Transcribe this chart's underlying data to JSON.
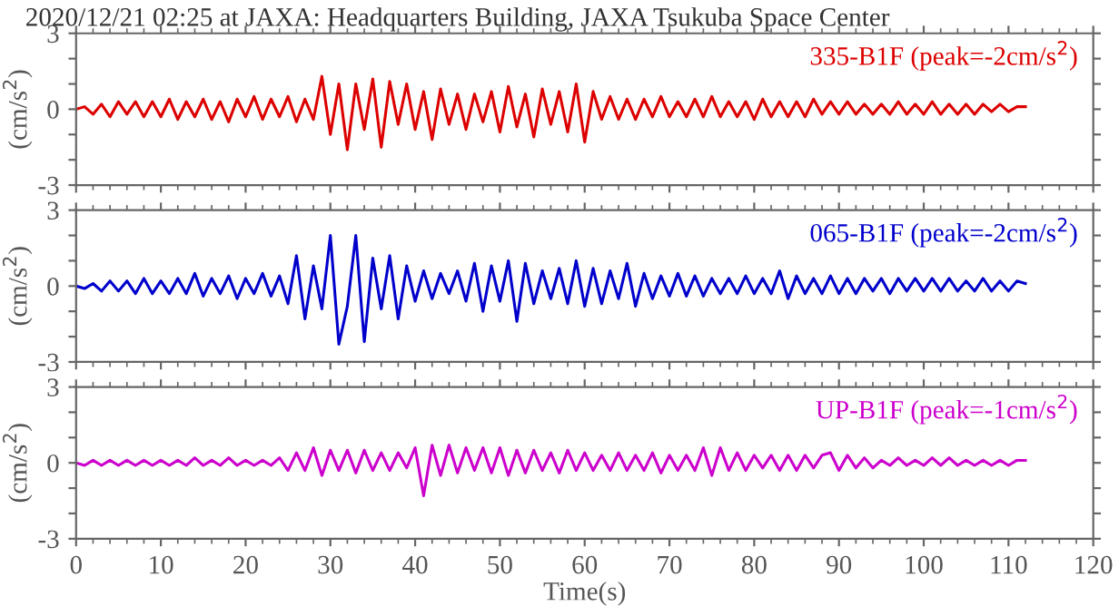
{
  "chart_data": [
    {
      "type": "line",
      "title": "2020/12/21 02:25 at JAXA: Headquarters Building, JAXA Tsukuba Space Center",
      "ylabel": "(cm/s$^{2}$)",
      "xlim": [
        0,
        120
      ],
      "ylim": [
        -3,
        3
      ],
      "yticks": [
        -3,
        {
          "value": -2,
          "label": null
        },
        {
          "value": -1,
          "label": null
        },
        0,
        {
          "value": 1,
          "label": null
        },
        {
          "value": 2,
          "label": null
        },
        3
      ],
      "xticks": [
        0,
        10,
        20,
        30,
        40,
        50,
        60,
        70,
        80,
        90,
        100,
        110,
        120
      ],
      "tick_labels": "y",
      "grid": false,
      "legend": false,
      "x": [
        0,
        1,
        2,
        3,
        4,
        5,
        6,
        7,
        8,
        9,
        10,
        11,
        12,
        13,
        14,
        15,
        16,
        17,
        18,
        19,
        20,
        21,
        22,
        23,
        24,
        25,
        26,
        27,
        28,
        29,
        30,
        31,
        32,
        33,
        34,
        35,
        36,
        37,
        38,
        39,
        40,
        41,
        42,
        43,
        44,
        45,
        46,
        47,
        48,
        49,
        50,
        51,
        52,
        53,
        54,
        55,
        56,
        57,
        58,
        59,
        60,
        61,
        62,
        63,
        64,
        65,
        66,
        67,
        68,
        69,
        70,
        71,
        72,
        73,
        74,
        75,
        76,
        77,
        78,
        79,
        80,
        81,
        82,
        83,
        84,
        85,
        86,
        87,
        88,
        89,
        90,
        91,
        92,
        93,
        94,
        95,
        96,
        97,
        98,
        99,
        100,
        101,
        102,
        103,
        104,
        105,
        106,
        107,
        108,
        109,
        110,
        111,
        112
      ],
      "series": [
        {
          "name": "335-B1F (peak=-2cm/s$^{2}$)",
          "color": "#dd0000",
          "values": [
            0,
            0.1,
            -0.2,
            0.2,
            -0.3,
            0.3,
            -0.2,
            0.3,
            -0.3,
            0.3,
            -0.3,
            0.4,
            -0.4,
            0.3,
            -0.3,
            0.4,
            -0.4,
            0.3,
            -0.5,
            0.4,
            -0.3,
            0.5,
            -0.4,
            0.4,
            -0.3,
            0.5,
            -0.5,
            0.4,
            -0.4,
            1.3,
            -1.0,
            1.0,
            -1.6,
            1.0,
            -0.8,
            1.2,
            -1.5,
            1.1,
            -0.6,
            1.0,
            -0.8,
            0.7,
            -1.2,
            0.8,
            -0.6,
            0.6,
            -0.8,
            0.6,
            -0.5,
            0.7,
            -0.9,
            0.9,
            -0.7,
            0.6,
            -1.1,
            0.8,
            -0.6,
            0.7,
            -0.9,
            1.0,
            -1.3,
            0.7,
            -0.4,
            0.5,
            -0.4,
            0.4,
            -0.4,
            0.4,
            -0.3,
            0.5,
            -0.3,
            0.3,
            -0.3,
            0.4,
            -0.3,
            0.5,
            -0.3,
            0.3,
            -0.3,
            0.3,
            -0.4,
            0.4,
            -0.3,
            0.3,
            -0.3,
            0.3,
            -0.3,
            0.4,
            -0.2,
            0.3,
            -0.2,
            0.3,
            -0.2,
            0.2,
            -0.2,
            0.2,
            -0.2,
            0.3,
            -0.2,
            0.2,
            -0.2,
            0.3,
            -0.2,
            0.2,
            -0.2,
            0.2,
            -0.2,
            0.2,
            -0.1,
            0.2,
            -0.1,
            0.1,
            0.1
          ]
        }
      ]
    },
    {
      "type": "line",
      "ylabel": "(cm/s$^{2}$)",
      "xlim": [
        0,
        120
      ],
      "ylim": [
        -3,
        3
      ],
      "yticks": [
        -3,
        {
          "value": -2,
          "label": null
        },
        {
          "value": -1,
          "label": null
        },
        0,
        {
          "value": 1,
          "label": null
        },
        {
          "value": 2,
          "label": null
        },
        3
      ],
      "xticks": [
        0,
        10,
        20,
        30,
        40,
        50,
        60,
        70,
        80,
        90,
        100,
        110,
        120
      ],
      "tick_labels": "y",
      "grid": false,
      "legend": false,
      "x": [
        0,
        1,
        2,
        3,
        4,
        5,
        6,
        7,
        8,
        9,
        10,
        11,
        12,
        13,
        14,
        15,
        16,
        17,
        18,
        19,
        20,
        21,
        22,
        23,
        24,
        25,
        26,
        27,
        28,
        29,
        30,
        31,
        32,
        33,
        34,
        35,
        36,
        37,
        38,
        39,
        40,
        41,
        42,
        43,
        44,
        45,
        46,
        47,
        48,
        49,
        50,
        51,
        52,
        53,
        54,
        55,
        56,
        57,
        58,
        59,
        60,
        61,
        62,
        63,
        64,
        65,
        66,
        67,
        68,
        69,
        70,
        71,
        72,
        73,
        74,
        75,
        76,
        77,
        78,
        79,
        80,
        81,
        82,
        83,
        84,
        85,
        86,
        87,
        88,
        89,
        90,
        91,
        92,
        93,
        94,
        95,
        96,
        97,
        98,
        99,
        100,
        101,
        102,
        103,
        104,
        105,
        106,
        107,
        108,
        109,
        110,
        111,
        112
      ],
      "series": [
        {
          "name": "065-B1F (peak=-2cm/s$^{2}$)",
          "color": "#0000cc",
          "values": [
            0,
            -0.1,
            0.1,
            -0.2,
            0.2,
            -0.2,
            0.2,
            -0.3,
            0.3,
            -0.3,
            0.2,
            -0.3,
            0.3,
            -0.3,
            0.5,
            -0.4,
            0.3,
            -0.3,
            0.4,
            -0.5,
            0.3,
            -0.3,
            0.5,
            -0.4,
            0.4,
            -0.7,
            1.2,
            -1.3,
            0.8,
            -0.9,
            2.0,
            -2.3,
            -0.8,
            2.0,
            -2.2,
            1.1,
            -0.9,
            1.2,
            -1.3,
            0.8,
            -0.6,
            0.6,
            -0.5,
            0.5,
            -0.3,
            0.6,
            -0.6,
            0.9,
            -1.0,
            0.8,
            -0.6,
            1.0,
            -1.4,
            0.9,
            -0.7,
            0.6,
            -0.5,
            0.7,
            -0.7,
            1.0,
            -0.8,
            0.7,
            -0.7,
            0.6,
            -0.5,
            0.9,
            -0.8,
            0.5,
            -0.5,
            0.4,
            -0.4,
            0.5,
            -0.4,
            0.4,
            -0.4,
            0.3,
            -0.3,
            0.3,
            -0.3,
            0.4,
            -0.3,
            0.3,
            -0.3,
            0.6,
            -0.5,
            0.4,
            -0.3,
            0.3,
            -0.3,
            0.4,
            -0.3,
            0.3,
            -0.3,
            0.3,
            -0.2,
            0.3,
            -0.3,
            0.3,
            -0.2,
            0.3,
            -0.2,
            0.3,
            -0.2,
            0.3,
            -0.2,
            0.2,
            -0.2,
            0.3,
            -0.2,
            0.2,
            -0.2,
            0.2,
            0.1
          ]
        }
      ]
    },
    {
      "type": "line",
      "ylabel": "(cm/s$^{2}$)",
      "xlabel": "Time(s)",
      "xlim": [
        0,
        120
      ],
      "ylim": [
        -3,
        3
      ],
      "yticks": [
        -3,
        {
          "value": -2,
          "label": null
        },
        {
          "value": -1,
          "label": null
        },
        0,
        {
          "value": 1,
          "label": null
        },
        {
          "value": 2,
          "label": null
        },
        3
      ],
      "xticks": [
        0,
        10,
        20,
        30,
        40,
        50,
        60,
        70,
        80,
        90,
        100,
        110,
        120
      ],
      "grid": false,
      "legend": false,
      "x": [
        0,
        1,
        2,
        3,
        4,
        5,
        6,
        7,
        8,
        9,
        10,
        11,
        12,
        13,
        14,
        15,
        16,
        17,
        18,
        19,
        20,
        21,
        22,
        23,
        24,
        25,
        26,
        27,
        28,
        29,
        30,
        31,
        32,
        33,
        34,
        35,
        36,
        37,
        38,
        39,
        40,
        41,
        42,
        43,
        44,
        45,
        46,
        47,
        48,
        49,
        50,
        51,
        52,
        53,
        54,
        55,
        56,
        57,
        58,
        59,
        60,
        61,
        62,
        63,
        64,
        65,
        66,
        67,
        68,
        69,
        70,
        71,
        72,
        73,
        74,
        75,
        76,
        77,
        78,
        79,
        80,
        81,
        82,
        83,
        84,
        85,
        86,
        87,
        88,
        89,
        90,
        91,
        92,
        93,
        94,
        95,
        96,
        97,
        98,
        99,
        100,
        101,
        102,
        103,
        104,
        105,
        106,
        107,
        108,
        109,
        110,
        111,
        112
      ],
      "series": [
        {
          "name": "UP-B1F (peak=-1cm/s$^{2}$)",
          "color": "#cc00cc",
          "values": [
            0,
            -0.1,
            0.1,
            -0.1,
            0.1,
            -0.1,
            0.1,
            -0.1,
            0.1,
            -0.1,
            0.1,
            -0.1,
            0.1,
            -0.1,
            0.2,
            -0.1,
            0.1,
            -0.1,
            0.2,
            -0.1,
            0.1,
            -0.1,
            0.1,
            -0.1,
            0.2,
            -0.3,
            0.4,
            -0.3,
            0.6,
            -0.5,
            0.5,
            -0.3,
            0.5,
            -0.4,
            0.5,
            -0.3,
            0.4,
            -0.3,
            0.4,
            -0.2,
            0.6,
            -1.3,
            0.7,
            -0.5,
            0.7,
            -0.4,
            0.6,
            -0.3,
            0.6,
            -0.4,
            0.6,
            -0.5,
            0.5,
            -0.4,
            0.5,
            -0.3,
            0.4,
            -0.4,
            0.5,
            -0.3,
            0.4,
            -0.3,
            0.3,
            -0.3,
            0.4,
            -0.3,
            0.3,
            -0.3,
            0.4,
            -0.4,
            0.3,
            -0.3,
            0.3,
            -0.3,
            0.6,
            -0.5,
            0.6,
            -0.3,
            0.4,
            -0.3,
            0.3,
            -0.2,
            0.3,
            -0.3,
            0.3,
            -0.3,
            0.3,
            -0.2,
            0.3,
            0.4,
            -0.3,
            0.3,
            -0.2,
            0.2,
            -0.2,
            0.1,
            -0.1,
            0.2,
            -0.1,
            0.1,
            -0.1,
            0.2,
            -0.1,
            0.2,
            -0.1,
            0.1,
            -0.1,
            0.1,
            -0.1,
            0.1,
            -0.1,
            0.1,
            0.1
          ]
        }
      ]
    }
  ]
}
